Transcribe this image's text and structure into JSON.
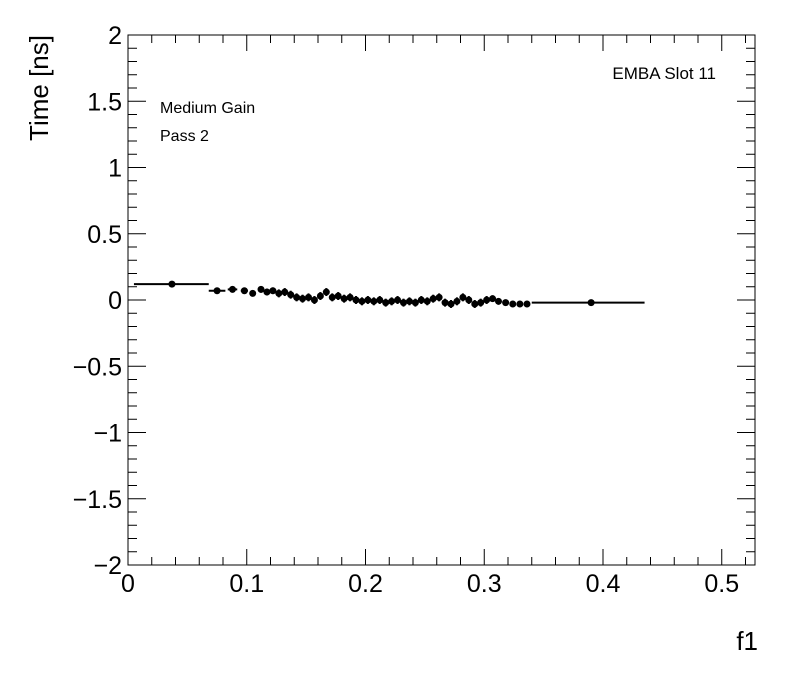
{
  "chart_data": {
    "type": "scatter",
    "title": "",
    "xlabel": "f1",
    "ylabel": "Time [ns]",
    "xlim": [
      0,
      0.528
    ],
    "ylim": [
      -2,
      2
    ],
    "x_ticks": [
      "0",
      "0.1",
      "0.2",
      "0.3",
      "0.4",
      "0.5"
    ],
    "y_ticks": [
      "−2",
      "−1.5",
      "−1",
      "−0.5",
      "0",
      "0.5",
      "1",
      "1.5",
      "2"
    ],
    "grid": false,
    "annotations": [
      "Medium Gain",
      "Pass 2",
      "EMBA Slot 11"
    ],
    "color": "#000000",
    "points": [
      {
        "x": 0.037,
        "y": 0.12,
        "xlo": 0.005,
        "xhi": 0.068,
        "err": 0.01
      },
      {
        "x": 0.075,
        "y": 0.07,
        "xlo": 0.068,
        "xhi": 0.082,
        "err": 0.02
      },
      {
        "x": 0.088,
        "y": 0.08,
        "xlo": 0.084,
        "xhi": 0.092,
        "err": 0.02
      },
      {
        "x": 0.098,
        "y": 0.07,
        "xlo": 0.095,
        "xhi": 0.101,
        "err": 0.02
      },
      {
        "x": 0.105,
        "y": 0.05,
        "xlo": 0.103,
        "xhi": 0.107,
        "err": 0.02
      },
      {
        "x": 0.112,
        "y": 0.08,
        "xlo": 0.11,
        "xhi": 0.114,
        "err": 0.025
      },
      {
        "x": 0.117,
        "y": 0.06,
        "err": 0.025
      },
      {
        "x": 0.122,
        "y": 0.07,
        "err": 0.025
      },
      {
        "x": 0.127,
        "y": 0.05,
        "err": 0.03
      },
      {
        "x": 0.132,
        "y": 0.06,
        "err": 0.03
      },
      {
        "x": 0.137,
        "y": 0.04,
        "err": 0.03
      },
      {
        "x": 0.142,
        "y": 0.02,
        "err": 0.03
      },
      {
        "x": 0.147,
        "y": 0.01,
        "err": 0.03
      },
      {
        "x": 0.152,
        "y": 0.02,
        "err": 0.03
      },
      {
        "x": 0.157,
        "y": 0.0,
        "err": 0.03
      },
      {
        "x": 0.162,
        "y": 0.03,
        "err": 0.03
      },
      {
        "x": 0.167,
        "y": 0.06,
        "err": 0.03
      },
      {
        "x": 0.172,
        "y": 0.02,
        "err": 0.03
      },
      {
        "x": 0.177,
        "y": 0.03,
        "err": 0.03
      },
      {
        "x": 0.182,
        "y": 0.01,
        "err": 0.03
      },
      {
        "x": 0.187,
        "y": 0.02,
        "err": 0.03
      },
      {
        "x": 0.192,
        "y": 0.0,
        "err": 0.03
      },
      {
        "x": 0.197,
        "y": -0.01,
        "err": 0.03
      },
      {
        "x": 0.202,
        "y": 0.0,
        "err": 0.03
      },
      {
        "x": 0.207,
        "y": -0.01,
        "err": 0.03
      },
      {
        "x": 0.212,
        "y": 0.0,
        "err": 0.03
      },
      {
        "x": 0.217,
        "y": -0.02,
        "err": 0.03
      },
      {
        "x": 0.222,
        "y": -0.01,
        "err": 0.03
      },
      {
        "x": 0.227,
        "y": 0.0,
        "err": 0.03
      },
      {
        "x": 0.232,
        "y": -0.02,
        "err": 0.03
      },
      {
        "x": 0.237,
        "y": -0.01,
        "err": 0.03
      },
      {
        "x": 0.242,
        "y": -0.02,
        "err": 0.03
      },
      {
        "x": 0.247,
        "y": 0.0,
        "err": 0.03
      },
      {
        "x": 0.252,
        "y": -0.01,
        "err": 0.03
      },
      {
        "x": 0.257,
        "y": 0.01,
        "err": 0.03
      },
      {
        "x": 0.262,
        "y": 0.02,
        "err": 0.03
      },
      {
        "x": 0.267,
        "y": -0.02,
        "err": 0.03
      },
      {
        "x": 0.272,
        "y": -0.03,
        "err": 0.03
      },
      {
        "x": 0.277,
        "y": -0.01,
        "err": 0.03
      },
      {
        "x": 0.282,
        "y": 0.02,
        "err": 0.03
      },
      {
        "x": 0.287,
        "y": 0.0,
        "err": 0.03
      },
      {
        "x": 0.292,
        "y": -0.03,
        "err": 0.03
      },
      {
        "x": 0.297,
        "y": -0.02,
        "err": 0.03
      },
      {
        "x": 0.302,
        "y": 0.0,
        "err": 0.03
      },
      {
        "x": 0.307,
        "y": 0.01,
        "err": 0.025
      },
      {
        "x": 0.312,
        "y": -0.01,
        "err": 0.025
      },
      {
        "x": 0.318,
        "y": -0.02,
        "err": 0.02
      },
      {
        "x": 0.324,
        "y": -0.03,
        "err": 0.02
      },
      {
        "x": 0.33,
        "y": -0.03,
        "err": 0.02
      },
      {
        "x": 0.336,
        "y": -0.03,
        "err": 0.02
      },
      {
        "x": 0.39,
        "y": -0.02,
        "xlo": 0.34,
        "xhi": 0.435,
        "err": 0.01
      }
    ]
  }
}
